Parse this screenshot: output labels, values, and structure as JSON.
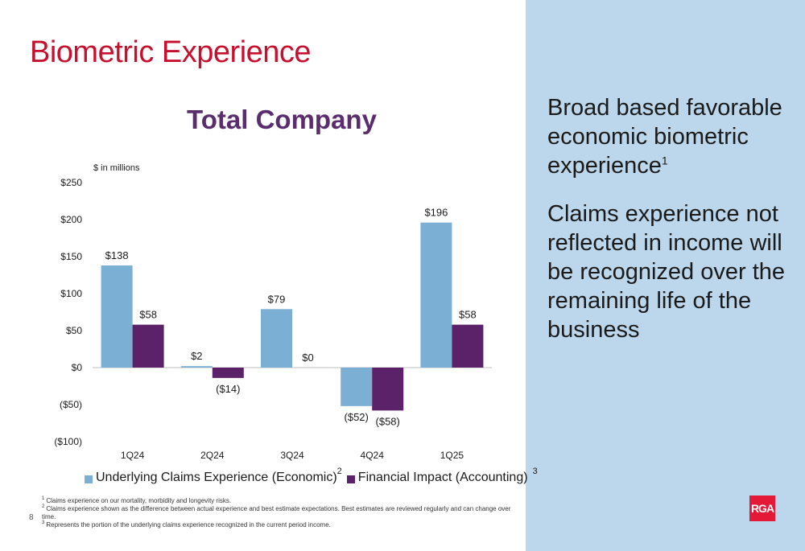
{
  "slide": {
    "title": "Biometric Experience",
    "page_number": "8",
    "logo_text": "RGA"
  },
  "side_panel": {
    "text_1": "Broad based favorable economic biometric experience",
    "text_1_sup": "1",
    "text_2": "Claims experience not reflected in income will be recognized over the remaining life of the business"
  },
  "footnotes": [
    {
      "num": "1",
      "text": "Claims experience on our mortality, morbidity and longevity risks."
    },
    {
      "num": "2",
      "text": "Claims experience shown as the difference between actual experience and best estimate expectations. Best estimates are reviewed regularly and can change over time."
    },
    {
      "num": "3",
      "text": "Represents the portion of the underlying claims experience recognized in the current period income."
    }
  ],
  "colors": {
    "title_red": "#c8102e",
    "chart_title_purple": "#5b2d6e",
    "series_economic": "#7bafd4",
    "series_accounting": "#5b2269",
    "panel_blue": "#bcd7eb"
  },
  "chart_data": {
    "type": "bar",
    "title": "Total Company",
    "units_label": "$ in millions",
    "categories": [
      "1Q24",
      "2Q24",
      "3Q24",
      "4Q24",
      "1Q25"
    ],
    "series": [
      {
        "name": "Underlying Claims Experience (Economic)",
        "name_sup": "2",
        "values": [
          138,
          2,
          79,
          -52,
          196
        ],
        "labels": [
          "$138",
          "$2",
          "$79",
          "($52)",
          "$196"
        ]
      },
      {
        "name": "Financial Impact (Accounting)",
        "name_sup": "3",
        "values": [
          58,
          -14,
          0,
          -58,
          58
        ],
        "labels": [
          "$58",
          "($14)",
          "$0",
          "($58)",
          "$58"
        ]
      }
    ],
    "ylim": [
      -100,
      250
    ],
    "yticks": [
      250,
      200,
      150,
      100,
      50,
      0,
      -50,
      -100
    ],
    "ytick_labels": [
      "$250",
      "$200",
      "$150",
      "$100",
      "$50",
      "$0",
      "($50)",
      "($100)"
    ],
    "grid": false,
    "legend": "bottom"
  }
}
